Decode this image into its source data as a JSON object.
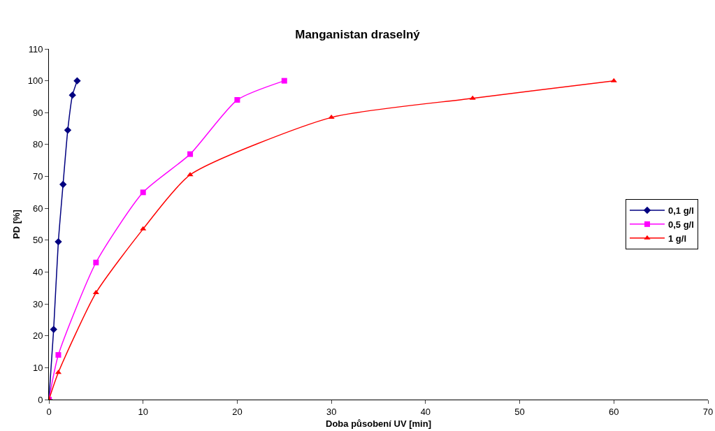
{
  "chart_data": {
    "type": "line",
    "title": "Manganistan draselný",
    "xlabel": "Doba působení UV [min]",
    "ylabel": "PD [%]",
    "xlim": [
      0,
      70
    ],
    "xticks": [
      0,
      10,
      20,
      30,
      40,
      50,
      60,
      70
    ],
    "ylim": [
      0,
      110
    ],
    "yticks": [
      0,
      10,
      20,
      30,
      40,
      50,
      60,
      70,
      80,
      90,
      100,
      110
    ],
    "grid": false,
    "legend": "right",
    "series": [
      {
        "name": "0,1 g/l",
        "color": "#000080",
        "marker": "diamond",
        "x": [
          0,
          0.5,
          1,
          1.5,
          2,
          2.5,
          3
        ],
        "values": [
          0,
          22,
          49.5,
          67.5,
          84.5,
          95.5,
          100
        ]
      },
      {
        "name": "0,5 g/l",
        "color": "#ff00ff",
        "marker": "square",
        "x": [
          0,
          1,
          5,
          10,
          15,
          20,
          25
        ],
        "values": [
          0,
          14,
          43,
          65,
          77,
          94,
          100
        ]
      },
      {
        "name": "1 g/l",
        "color": "#ff0000",
        "marker": "triangle",
        "x": [
          0,
          1,
          5,
          10,
          15,
          30,
          45,
          60
        ],
        "values": [
          0,
          8.5,
          33.5,
          53.5,
          70.5,
          88.5,
          94.5,
          100
        ]
      }
    ]
  }
}
